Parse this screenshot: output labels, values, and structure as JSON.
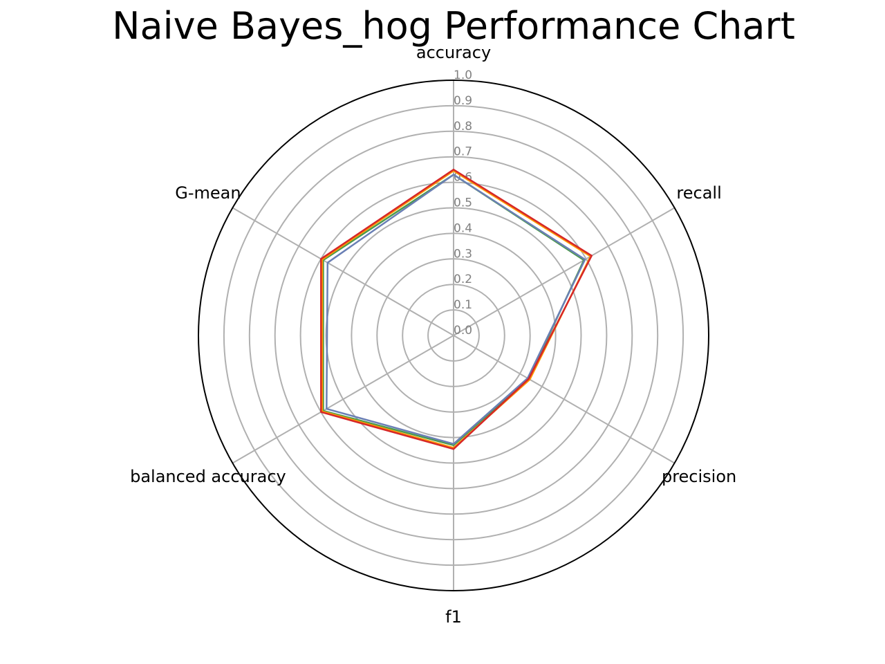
{
  "chart_data": {
    "type": "radar",
    "title": "Naive Bayes_hog Performance Chart",
    "axes": [
      "accuracy",
      "recall",
      "precision",
      "f1",
      "balanced accuracy",
      "G-mean"
    ],
    "rlim": [
      0,
      1.0
    ],
    "r_ticks": [
      "0.0",
      "0.1",
      "0.2",
      "0.3",
      "0.4",
      "0.5",
      "0.6",
      "0.7",
      "0.8",
      "0.9",
      "1.0"
    ],
    "grid": true,
    "series": [
      {
        "color": "#4c9a4c",
        "values": [
          0.63,
          0.59,
          0.34,
          0.43,
          0.59,
          0.59
        ]
      },
      {
        "color": "#ff9900",
        "values": [
          0.645,
          0.62,
          0.345,
          0.44,
          0.595,
          0.595
        ]
      },
      {
        "color": "#6a7fb5",
        "values": [
          0.63,
          0.595,
          0.335,
          0.425,
          0.575,
          0.57
        ]
      },
      {
        "color": "#d62728",
        "values": [
          0.65,
          0.625,
          0.34,
          0.445,
          0.6,
          0.6
        ]
      }
    ]
  }
}
